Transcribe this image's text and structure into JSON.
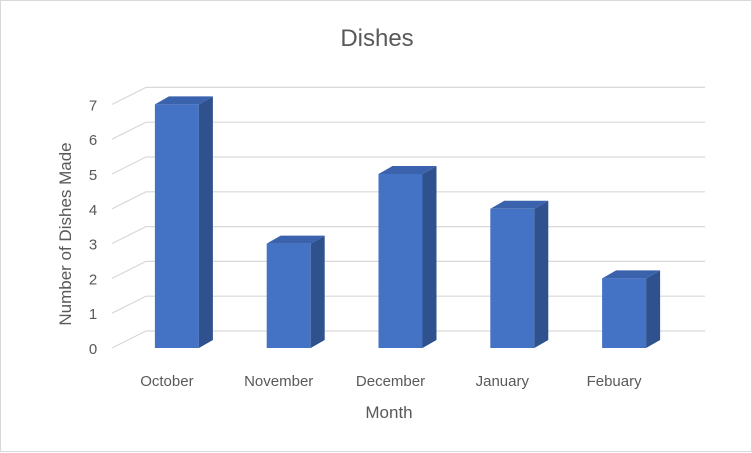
{
  "chart_data": {
    "type": "bar",
    "title": "Dishes",
    "xlabel": "Month",
    "ylabel": "Number of Dishes Made",
    "categories": [
      "October",
      "November",
      "December",
      "January",
      "Febuary"
    ],
    "values": [
      7,
      3,
      5,
      4,
      2
    ],
    "ylim": [
      0,
      7
    ],
    "yticks": [
      "0",
      "1",
      "2",
      "3",
      "4",
      "5",
      "6",
      "7"
    ],
    "grid": true,
    "style": "3d-column",
    "colors": {
      "bar_front": "#4472c4",
      "bar_side": "#2f528f",
      "bar_top": "#3a62ad",
      "grid": "#d9d9d9",
      "text": "#595959"
    }
  }
}
